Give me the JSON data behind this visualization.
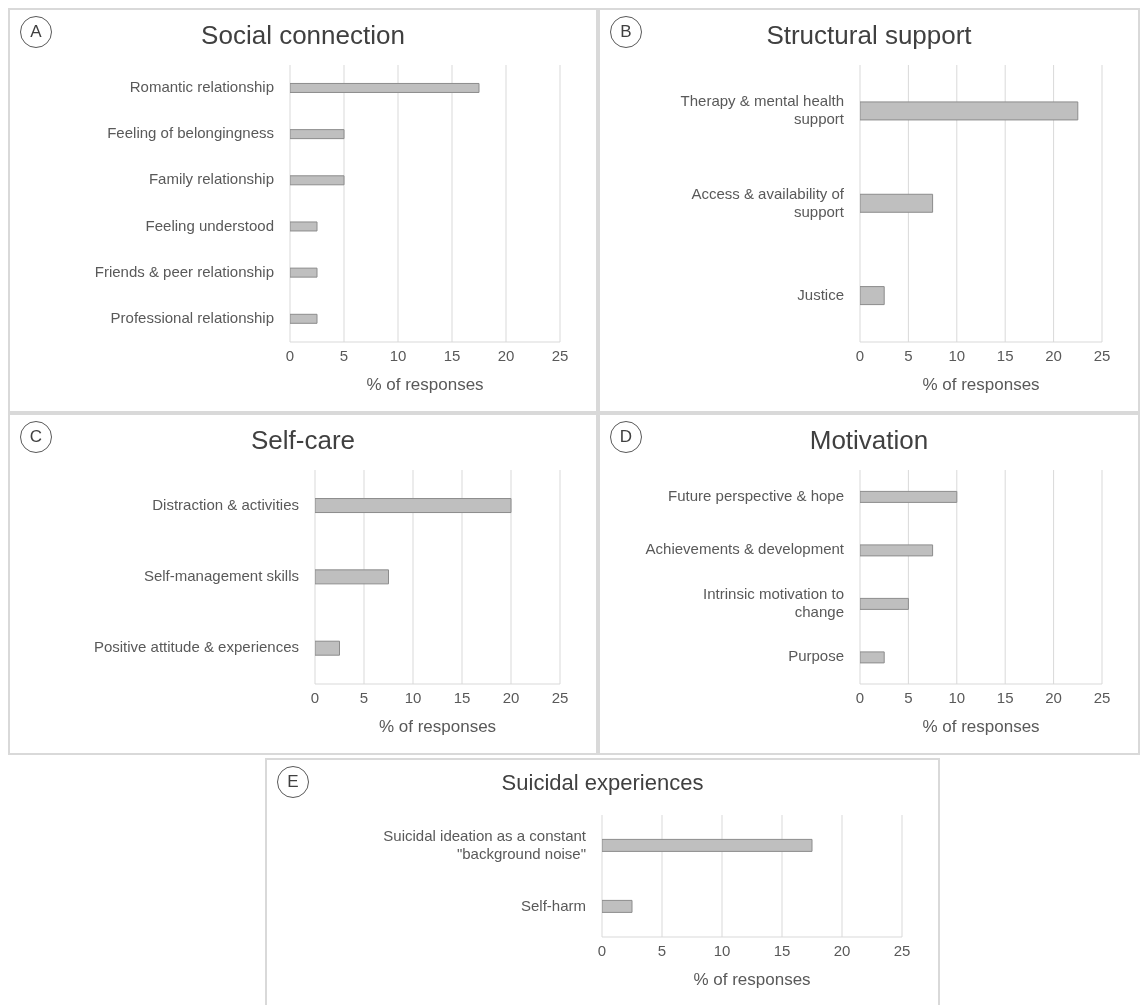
{
  "chart_data": [
    {
      "type": "bar",
      "orientation": "horizontal",
      "title": "Social connection",
      "annotations": [
        "A"
      ],
      "xlabel": "% of responses",
      "categories": [
        "Romantic relationship",
        "Feeling of belongingness",
        "Family relationship",
        "Feeling understood",
        "Friends & peer relationship",
        "Professional relationship"
      ],
      "values": [
        17.5,
        5,
        5,
        2.5,
        2.5,
        2.5
      ],
      "color": "#bfbfbf",
      "xlim": [
        0,
        25
      ],
      "xticks": [
        0,
        5,
        10,
        15,
        20,
        25
      ],
      "grid": "x",
      "legend": false
    },
    {
      "type": "bar",
      "orientation": "horizontal",
      "title": "Structural support",
      "annotations": [
        "B"
      ],
      "xlabel": "% of responses",
      "categories": [
        "Therapy & mental health support",
        "Access & availability of support",
        "Justice"
      ],
      "values": [
        22.5,
        7.5,
        2.5
      ],
      "color": "#bfbfbf",
      "xlim": [
        0,
        25
      ],
      "xticks": [
        0,
        5,
        10,
        15,
        20,
        25
      ],
      "grid": "x",
      "legend": false
    },
    {
      "type": "bar",
      "orientation": "horizontal",
      "title": "Self-care",
      "annotations": [
        "C"
      ],
      "xlabel": "% of responses",
      "categories": [
        "Distraction & activities",
        "Self-management skills",
        "Positive attitude & experiences"
      ],
      "values": [
        20,
        7.5,
        2.5
      ],
      "color": "#bfbfbf",
      "xlim": [
        0,
        25
      ],
      "xticks": [
        0,
        5,
        10,
        15,
        20,
        25
      ],
      "grid": "x",
      "legend": false
    },
    {
      "type": "bar",
      "orientation": "horizontal",
      "title": "Motivation",
      "annotations": [
        "D"
      ],
      "xlabel": "% of responses",
      "categories": [
        "Future perspective & hope",
        "Achievements & development",
        "Intrinsic motivation to change",
        "Purpose"
      ],
      "values": [
        10,
        7.5,
        5,
        2.5
      ],
      "color": "#bfbfbf",
      "xlim": [
        0,
        25
      ],
      "xticks": [
        0,
        5,
        10,
        15,
        20,
        25
      ],
      "grid": "x",
      "legend": false
    },
    {
      "type": "bar",
      "orientation": "horizontal",
      "title": "Suicidal experiences",
      "annotations": [
        "E"
      ],
      "xlabel": "% of responses",
      "categories": [
        "Suicidal ideation as a constant \"background noise\"",
        "Self-harm"
      ],
      "values": [
        17.5,
        2.5
      ],
      "color": "#bfbfbf",
      "xlim": [
        0,
        25
      ],
      "xticks": [
        0,
        5,
        10,
        15,
        20,
        25
      ],
      "grid": "x",
      "legend": false
    }
  ]
}
